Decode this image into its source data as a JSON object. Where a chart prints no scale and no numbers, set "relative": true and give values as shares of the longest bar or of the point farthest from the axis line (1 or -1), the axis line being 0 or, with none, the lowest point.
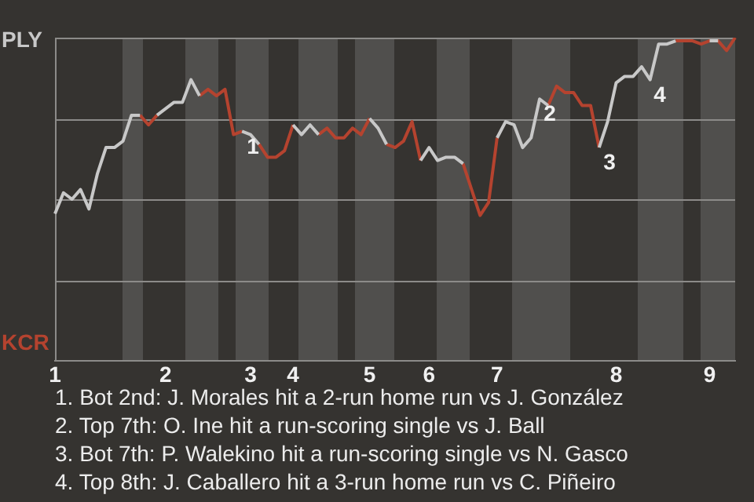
{
  "chart_data": {
    "type": "line",
    "marker": "none",
    "legend": false,
    "grid": "y",
    "relative": true,
    "categories": [
      "1",
      null,
      null,
      null,
      null,
      null,
      null,
      null,
      null,
      null,
      null,
      null,
      null,
      "2",
      null,
      null,
      null,
      null,
      null,
      null,
      null,
      null,
      null,
      "3",
      null,
      null,
      null,
      null,
      "4",
      null,
      null,
      null,
      null,
      null,
      null,
      null,
      null,
      "5",
      null,
      null,
      null,
      null,
      null,
      null,
      "6",
      null,
      null,
      null,
      null,
      null,
      null,
      null,
      "7",
      null,
      null,
      null,
      null,
      null,
      null,
      null,
      null,
      null,
      null,
      null,
      null,
      null,
      "8",
      null,
      null,
      null,
      null,
      null,
      null,
      null,
      null,
      null,
      null,
      "9",
      null,
      null,
      null
    ],
    "series": [
      {
        "color": "#c8c8c8",
        "values": [
          0.455,
          0.52,
          0.5,
          0.53,
          0.47,
          0.58,
          0.66,
          0.66,
          0.68,
          0.76,
          0.76,
          null,
          0.76,
          0.78,
          0.8,
          0.8,
          0.87,
          0.82,
          null,
          null,
          null,
          null,
          0.71,
          0.7,
          0.67,
          null,
          null,
          null,
          0.73,
          0.7,
          0.73,
          0.7,
          null,
          null,
          null,
          null,
          null,
          0.75,
          0.72,
          0.67,
          null,
          null,
          null,
          0.62,
          0.66,
          0.62,
          0.63,
          0.63,
          0.61,
          null,
          null,
          null,
          0.69,
          0.74,
          0.73,
          0.66,
          0.69,
          0.81,
          0.79,
          null,
          null,
          null,
          null,
          null,
          0.66,
          0.74,
          0.86,
          0.88,
          0.88,
          0.91,
          0.87,
          0.98,
          0.98,
          0.99,
          null,
          null,
          null,
          0.99,
          0.99,
          null,
          null
        ]
      },
      {
        "color": "#b5432f",
        "values": [
          null,
          null,
          null,
          null,
          null,
          null,
          null,
          null,
          null,
          null,
          0.76,
          0.73,
          0.76,
          null,
          null,
          null,
          null,
          0.82,
          0.84,
          0.82,
          0.84,
          0.7,
          0.71,
          null,
          0.67,
          0.63,
          0.63,
          0.65,
          0.73,
          null,
          null,
          0.7,
          0.72,
          0.69,
          0.69,
          0.72,
          0.7,
          0.75,
          null,
          0.67,
          0.66,
          0.68,
          0.74,
          0.62,
          null,
          null,
          null,
          null,
          0.61,
          0.53,
          0.45,
          0.49,
          0.69,
          null,
          null,
          null,
          null,
          null,
          0.79,
          0.85,
          0.83,
          0.83,
          0.79,
          0.79,
          0.66,
          null,
          null,
          null,
          null,
          null,
          null,
          null,
          null,
          0.99,
          0.99,
          0.99,
          0.98,
          0.99,
          0.99,
          0.96,
          1.0
        ]
      }
    ],
    "annotations": [
      "PLY",
      "KCR",
      "1",
      "2",
      "3",
      "4",
      "1. Bot 2nd: J. Morales hit a 2-run home run vs J. González",
      "2. Top 7th: O. Ine hit a run-scoring single vs J. Ball",
      "3. Bot 7th: P. Walekino hit a run-scoring single vs N. Gasco",
      "4. Top 8th: J. Caballero hit a 3-run home run vs C. Piñeiro"
    ]
  }
}
